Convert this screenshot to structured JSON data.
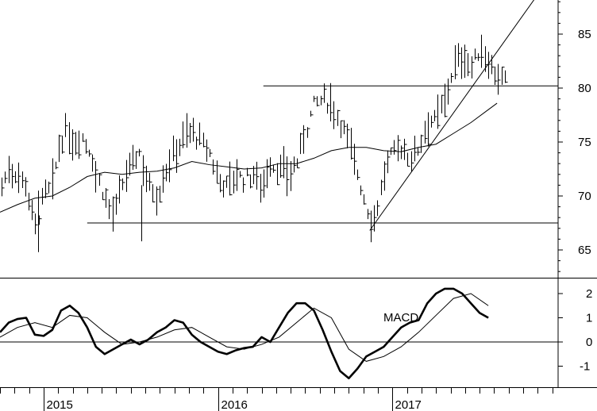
{
  "chart_data": [
    {
      "type": "ohlc",
      "ylim": [
        62.5,
        89
      ],
      "y_ticks": [
        "65",
        "70",
        "75",
        "80",
        "85"
      ],
      "x_ticks": [
        {
          "label": "2015",
          "t": 2015.0
        },
        {
          "label": "2016",
          "t": 2016.0
        },
        {
          "label": "2017",
          "t": 2017.0
        }
      ],
      "xlim": [
        2014.75,
        2017.95
      ],
      "series": [
        {
          "name": "price",
          "type": "ohlc",
          "anchors": [
            [
              2014.75,
              70.5
            ],
            [
              2014.8,
              72.5
            ],
            [
              2014.85,
              72
            ],
            [
              2014.9,
              71
            ],
            [
              2014.95,
              67
            ],
            [
              2015.0,
              70
            ],
            [
              2015.05,
              71
            ],
            [
              2015.08,
              74
            ],
            [
              2015.12,
              76
            ],
            [
              2015.17,
              75
            ],
            [
              2015.22,
              75.5
            ],
            [
              2015.27,
              74
            ],
            [
              2015.3,
              72
            ],
            [
              2015.35,
              70
            ],
            [
              2015.4,
              68
            ],
            [
              2015.45,
              71
            ],
            [
              2015.5,
              73
            ],
            [
              2015.55,
              74
            ],
            [
              2015.6,
              71
            ],
            [
              2015.65,
              70
            ],
            [
              2015.7,
              72.5
            ],
            [
              2015.75,
              74
            ],
            [
              2015.8,
              75.5
            ],
            [
              2015.85,
              76
            ],
            [
              2015.9,
              75
            ],
            [
              2015.95,
              74
            ],
            [
              2016.0,
              71.5
            ],
            [
              2016.05,
              71
            ],
            [
              2016.1,
              72
            ],
            [
              2016.15,
              71.5
            ],
            [
              2016.2,
              72
            ],
            [
              2016.25,
              71
            ],
            [
              2016.3,
              73
            ],
            [
              2016.35,
              72.5
            ],
            [
              2016.4,
              72
            ],
            [
              2016.45,
              73
            ],
            [
              2016.5,
              76
            ],
            [
              2016.55,
              78.5
            ],
            [
              2016.6,
              79
            ],
            [
              2016.65,
              78.5
            ],
            [
              2016.7,
              77
            ],
            [
              2016.75,
              75
            ],
            [
              2016.8,
              72
            ],
            [
              2016.85,
              69
            ],
            [
              2016.88,
              67.5
            ],
            [
              2016.92,
              69.5
            ],
            [
              2016.95,
              72
            ],
            [
              2017.0,
              74
            ],
            [
              2017.05,
              74.5
            ],
            [
              2017.1,
              73.5
            ],
            [
              2017.15,
              74.5
            ],
            [
              2017.2,
              77
            ],
            [
              2017.25,
              77
            ],
            [
              2017.3,
              79
            ],
            [
              2017.35,
              82
            ],
            [
              2017.4,
              83
            ],
            [
              2017.45,
              82
            ],
            [
              2017.5,
              83.5
            ],
            [
              2017.55,
              82.5
            ],
            [
              2017.6,
              81
            ],
            [
              2017.65,
              80.5
            ]
          ]
        },
        {
          "name": "moving average",
          "type": "line",
          "values": [
            [
              2014.75,
              68.5
            ],
            [
              2014.85,
              69.2
            ],
            [
              2014.95,
              69.8
            ],
            [
              2015.05,
              70
            ],
            [
              2015.15,
              70.8
            ],
            [
              2015.25,
              71.8
            ],
            [
              2015.35,
              72.2
            ],
            [
              2015.45,
              72
            ],
            [
              2015.55,
              72.2
            ],
            [
              2015.65,
              72.3
            ],
            [
              2015.75,
              72.6
            ],
            [
              2015.85,
              73.2
            ],
            [
              2015.95,
              72.9
            ],
            [
              2016.05,
              72.7
            ],
            [
              2016.15,
              72.5
            ],
            [
              2016.25,
              72.6
            ],
            [
              2016.35,
              73
            ],
            [
              2016.45,
              73
            ],
            [
              2016.55,
              73.5
            ],
            [
              2016.65,
              74.2
            ],
            [
              2016.75,
              74.5
            ],
            [
              2016.85,
              74.5
            ],
            [
              2016.95,
              74.2
            ],
            [
              2017.05,
              74.1
            ],
            [
              2017.15,
              74.5
            ],
            [
              2017.25,
              74.8
            ],
            [
              2017.35,
              75.8
            ],
            [
              2017.45,
              76.8
            ],
            [
              2017.55,
              78
            ],
            [
              2017.6,
              78.6
            ]
          ]
        }
      ],
      "annotations": [
        {
          "type": "hline",
          "y": 67.5,
          "from": 2015.25,
          "to": 2017.95
        },
        {
          "type": "hline",
          "y": 80.2,
          "from": 2016.26,
          "to": 2017.95
        },
        {
          "type": "trendline",
          "from": [
            2016.87,
            66.8
          ],
          "to": [
            2017.87,
            89.5
          ]
        }
      ]
    },
    {
      "type": "line",
      "ylim": [
        -1.8,
        2.6
      ],
      "y_ticks": [
        "2",
        "1",
        "0",
        "-1"
      ],
      "xlim": [
        2014.75,
        2017.95
      ],
      "annotations": [
        {
          "type": "text",
          "text": "MACD"
        }
      ],
      "series": [
        {
          "name": "MACD",
          "values": [
            [
              2014.75,
              0.4
            ],
            [
              2014.8,
              0.8
            ],
            [
              2014.85,
              0.95
            ],
            [
              2014.9,
              1.0
            ],
            [
              2014.95,
              0.3
            ],
            [
              2015.0,
              0.25
            ],
            [
              2015.05,
              0.5
            ],
            [
              2015.1,
              1.3
            ],
            [
              2015.15,
              1.5
            ],
            [
              2015.2,
              1.2
            ],
            [
              2015.25,
              0.6
            ],
            [
              2015.3,
              -0.2
            ],
            [
              2015.35,
              -0.5
            ],
            [
              2015.4,
              -0.3
            ],
            [
              2015.45,
              -0.1
            ],
            [
              2015.5,
              0.1
            ],
            [
              2015.55,
              -0.1
            ],
            [
              2015.6,
              0.1
            ],
            [
              2015.65,
              0.4
            ],
            [
              2015.7,
              0.6
            ],
            [
              2015.75,
              0.9
            ],
            [
              2015.8,
              0.8
            ],
            [
              2015.85,
              0.3
            ],
            [
              2015.9,
              0.0
            ],
            [
              2015.95,
              -0.2
            ],
            [
              2016.0,
              -0.4
            ],
            [
              2016.05,
              -0.5
            ],
            [
              2016.1,
              -0.35
            ],
            [
              2016.15,
              -0.25
            ],
            [
              2016.2,
              -0.2
            ],
            [
              2016.25,
              0.2
            ],
            [
              2016.3,
              0.0
            ],
            [
              2016.35,
              0.6
            ],
            [
              2016.4,
              1.2
            ],
            [
              2016.45,
              1.6
            ],
            [
              2016.5,
              1.6
            ],
            [
              2016.55,
              1.3
            ],
            [
              2016.6,
              0.5
            ],
            [
              2016.65,
              -0.4
            ],
            [
              2016.7,
              -1.2
            ],
            [
              2016.75,
              -1.5
            ],
            [
              2016.8,
              -1.1
            ],
            [
              2016.85,
              -0.6
            ],
            [
              2016.9,
              -0.4
            ],
            [
              2016.95,
              -0.2
            ],
            [
              2017.0,
              0.2
            ],
            [
              2017.05,
              0.6
            ],
            [
              2017.1,
              0.8
            ],
            [
              2017.15,
              0.9
            ],
            [
              2017.2,
              1.6
            ],
            [
              2017.25,
              2.0
            ],
            [
              2017.3,
              2.2
            ],
            [
              2017.35,
              2.2
            ],
            [
              2017.4,
              2.0
            ],
            [
              2017.45,
              1.6
            ],
            [
              2017.5,
              1.2
            ],
            [
              2017.55,
              1.0
            ]
          ]
        },
        {
          "name": "signal",
          "values": [
            [
              2014.75,
              0.2
            ],
            [
              2014.85,
              0.6
            ],
            [
              2014.95,
              0.8
            ],
            [
              2015.05,
              0.6
            ],
            [
              2015.15,
              1.1
            ],
            [
              2015.25,
              1.0
            ],
            [
              2015.35,
              0.4
            ],
            [
              2015.45,
              -0.1
            ],
            [
              2015.55,
              0.0
            ],
            [
              2015.65,
              0.2
            ],
            [
              2015.75,
              0.5
            ],
            [
              2015.85,
              0.6
            ],
            [
              2015.95,
              0.2
            ],
            [
              2016.05,
              -0.2
            ],
            [
              2016.15,
              -0.3
            ],
            [
              2016.25,
              -0.1
            ],
            [
              2016.35,
              0.2
            ],
            [
              2016.45,
              0.8
            ],
            [
              2016.55,
              1.4
            ],
            [
              2016.65,
              1.0
            ],
            [
              2016.75,
              -0.3
            ],
            [
              2016.85,
              -0.8
            ],
            [
              2016.95,
              -0.6
            ],
            [
              2017.05,
              -0.2
            ],
            [
              2017.15,
              0.4
            ],
            [
              2017.25,
              1.1
            ],
            [
              2017.35,
              1.8
            ],
            [
              2017.45,
              2.0
            ],
            [
              2017.55,
              1.5
            ]
          ]
        }
      ]
    }
  ]
}
